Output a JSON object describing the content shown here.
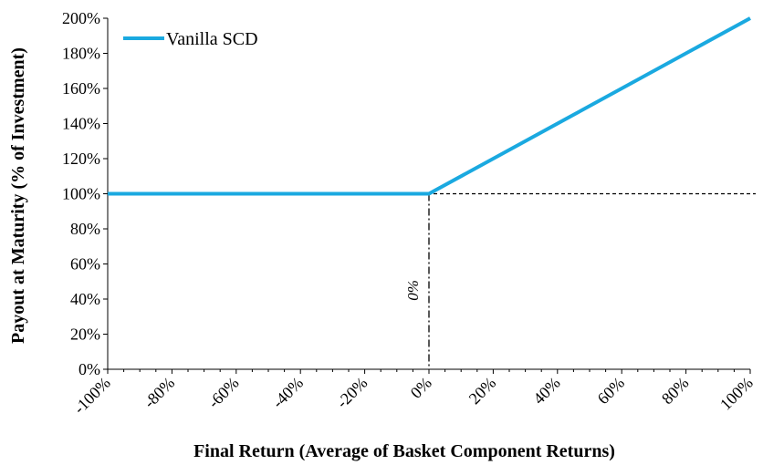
{
  "chart_data": {
    "type": "line",
    "xlabel": "Final Return (Average of Basket Component Returns)",
    "ylabel": "Payout at Maturity (% of Investment)",
    "xlim": [
      -100,
      100
    ],
    "ylim": [
      0,
      200
    ],
    "x_ticks": [
      "-100%",
      "-80%",
      "-60%",
      "-40%",
      "-20%",
      "0%",
      "20%",
      "40%",
      "60%",
      "80%",
      "100%"
    ],
    "x_tick_values": [
      -100,
      -80,
      -60,
      -40,
      -20,
      0,
      20,
      40,
      60,
      80,
      100
    ],
    "y_ticks": [
      "0%",
      "20%",
      "40%",
      "60%",
      "80%",
      "100%",
      "120%",
      "140%",
      "160%",
      "180%",
      "200%"
    ],
    "y_tick_values": [
      0,
      20,
      40,
      60,
      80,
      100,
      120,
      140,
      160,
      180,
      200
    ],
    "grid": false,
    "legend_position": "top-left",
    "series": [
      {
        "name": "Vanilla SCD",
        "color": "#1aa9e0",
        "x": [
          -100,
          0,
          100
        ],
        "y": [
          100,
          100,
          200
        ]
      }
    ],
    "reference_lines": [
      {
        "orientation": "horizontal",
        "value": 100,
        "style": "dashed"
      },
      {
        "orientation": "vertical",
        "value": 0,
        "style": "dash-dot"
      }
    ],
    "annotations": [
      {
        "text": "0%",
        "x": 0,
        "y": 45
      }
    ]
  }
}
